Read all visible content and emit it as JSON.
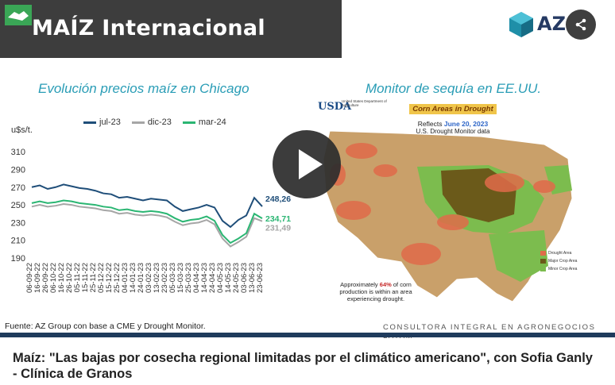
{
  "header": {
    "title": "MAÍZ Internacional",
    "brand": "AZ",
    "share_label": "share"
  },
  "chart_panel": {
    "title": "Evolución precios maíz en Chicago",
    "unit": "u$s/t."
  },
  "map_panel": {
    "title": "Monitor de sequía en EE.UU.",
    "usda": "USDA",
    "usda_dept": "United States Department of Agriculture",
    "heading": "Corn Areas in Drought",
    "reflects": "Reflects",
    "date": "June 20, 2023",
    "source": "U.S. Drought Monitor data",
    "note_pre": "Approximately",
    "note_pct": "64%",
    "note_post": "of corn production is within an area experiencing drought.",
    "legend": [
      "Drought Area",
      "Major Crop Area",
      "Minor Crop Area"
    ]
  },
  "colors": {
    "jul": "#1f4e79",
    "dic": "#a6a6a6",
    "mar": "#2bb673",
    "panel_title": "#2a9db6",
    "bar": "#1f3b5c"
  },
  "chart_data": {
    "type": "line",
    "ylabel": "u$s/t.",
    "ylim": [
      190,
      320
    ],
    "yticks": [
      190,
      210,
      230,
      250,
      270,
      290,
      310
    ],
    "x": [
      "06-09-22",
      "16-09-22",
      "26-09-22",
      "06-10-22",
      "16-10-22",
      "26-10-22",
      "05-11-22",
      "15-11-22",
      "25-11-22",
      "05-12-22",
      "15-12-22",
      "25-12-22",
      "04-01-23",
      "14-01-23",
      "24-01-23",
      "03-02-23",
      "13-02-23",
      "23-02-23",
      "05-03-23",
      "15-03-23",
      "25-03-23",
      "04-04-23",
      "14-04-23",
      "24-04-23",
      "04-05-23",
      "14-05-23",
      "24-05-23",
      "03-06-23",
      "13-06-23",
      "23-06-23"
    ],
    "series": [
      {
        "name": "jul-23",
        "end_label": "248,26",
        "values": [
          270,
          272,
          268,
          270,
          273,
          271,
          269,
          268,
          266,
          263,
          262,
          258,
          259,
          257,
          255,
          257,
          256,
          255,
          248,
          243,
          245,
          247,
          250,
          247,
          232,
          225,
          233,
          238,
          258,
          248.26
        ]
      },
      {
        "name": "dic-23",
        "end_label": "231,49",
        "values": [
          248,
          250,
          248,
          249,
          251,
          250,
          248,
          247,
          246,
          244,
          243,
          240,
          241,
          239,
          238,
          239,
          238,
          236,
          231,
          227,
          229,
          230,
          233,
          228,
          212,
          203,
          208,
          214,
          235,
          231.49
        ]
      },
      {
        "name": "mar-24",
        "end_label": "234,71",
        "values": [
          252,
          254,
          252,
          253,
          255,
          254,
          252,
          251,
          250,
          248,
          247,
          244,
          245,
          243,
          242,
          243,
          242,
          240,
          235,
          231,
          233,
          234,
          237,
          232,
          216,
          207,
          212,
          218,
          240,
          234.71
        ]
      }
    ]
  },
  "footer": {
    "source": "Fuente: AZ Group con base a CME y Drought Monitor.",
    "tagline": "CONSULTORA INTEGRAL EN AGRONEGOCIOS LATAM"
  },
  "caption": "Maíz: \"Las bajas por cosecha regional limitadas por el climático americano\", con Sofia Ganly - Clínica de Granos"
}
